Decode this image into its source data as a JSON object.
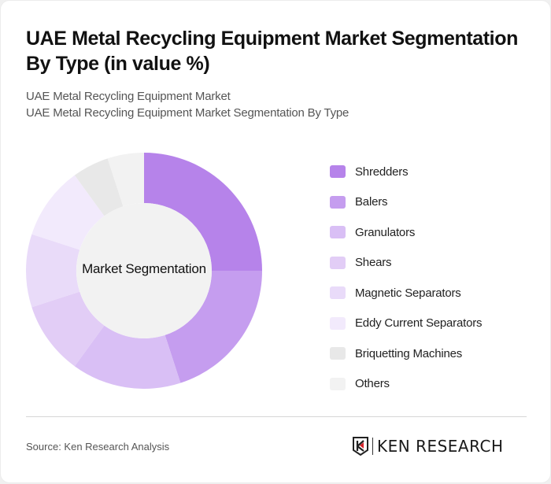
{
  "header": {
    "title": "UAE Metal Recycling Equipment Market Segmentation By Type (in value %)",
    "subtitle_1": "UAE Metal Recycling Equipment Market",
    "subtitle_2": "UAE Metal Recycling Equipment Market Segmentation By Type"
  },
  "chart": {
    "center_label": "Market Segmentation"
  },
  "legend": [
    {
      "label": "Shredders",
      "color": "#b683ea"
    },
    {
      "label": "Balers",
      "color": "#c59def"
    },
    {
      "label": "Granulators",
      "color": "#d9bff5"
    },
    {
      "label": "Shears",
      "color": "#e2cdf6"
    },
    {
      "label": "Magnetic Separators",
      "color": "#e9dbf9"
    },
    {
      "label": "Eddy Current Separators",
      "color": "#f2eafc"
    },
    {
      "label": "Briquetting Machines",
      "color": "#e8e8e8"
    },
    {
      "label": "Others",
      "color": "#f2f2f2"
    }
  ],
  "footer": {
    "source": "Source: Ken Research Analysis",
    "logo_text": "KEN RESEARCH"
  },
  "chart_data": {
    "type": "pie",
    "subtype": "donut",
    "title": "UAE Metal Recycling Equipment Market Segmentation By Type (in value %)",
    "center_label": "Market Segmentation",
    "categories": [
      "Shredders",
      "Balers",
      "Granulators",
      "Shears",
      "Magnetic Separators",
      "Eddy Current Separators",
      "Briquetting Machines",
      "Others"
    ],
    "values": [
      25,
      20,
      15,
      10,
      10,
      10,
      5,
      5
    ],
    "colors": [
      "#b683ea",
      "#c59def",
      "#d9bff5",
      "#e2cdf6",
      "#e9dbf9",
      "#f2eafc",
      "#e8e8e8",
      "#f2f2f2"
    ],
    "legend_position": "right"
  }
}
